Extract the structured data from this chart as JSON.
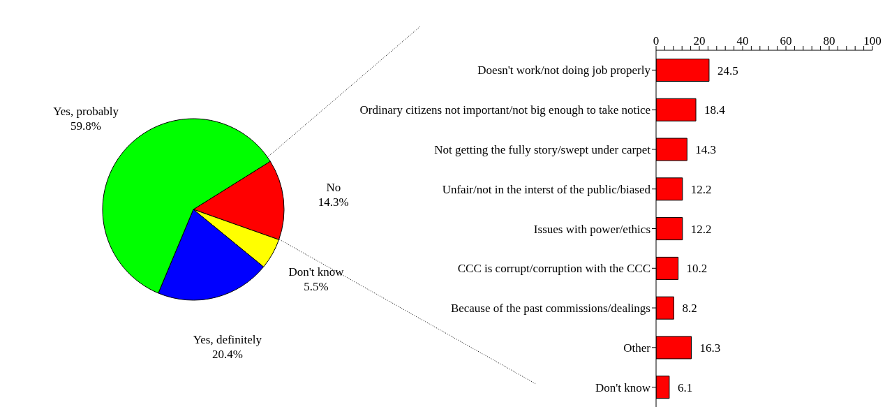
{
  "chart_data": [
    {
      "type": "pie",
      "categories": [
        "No",
        "Don't know",
        "Yes, definitely",
        "Yes, probably"
      ],
      "values": [
        14.3,
        5.5,
        20.4,
        59.8
      ],
      "colors": [
        "#ff0000",
        "#ffff00",
        "#0000ff",
        "#00ff00"
      ],
      "value_labels": [
        "14.3%",
        "5.5%",
        "20.4%",
        "59.8%"
      ]
    },
    {
      "type": "bar",
      "orientation": "horizontal",
      "categories": [
        "Doesn't work/not doing job properly",
        "Ordinary citizens not important/not big enough to take notice",
        "Not getting the fully story/swept under carpet",
        "Unfair/not in the interst of the public/biased",
        "Issues with power/ethics",
        "CCC is corrupt/corruption with the CCC",
        "Because of the past commissions/dealings",
        "Other",
        "Don't know"
      ],
      "values": [
        24.5,
        18.4,
        14.3,
        12.2,
        12.2,
        10.2,
        8.2,
        16.3,
        6.1
      ],
      "color": "#ff0000",
      "xlim": [
        0,
        100
      ],
      "xticks": [
        0,
        {
          "value": 4,
          "label": null
        },
        {
          "value": 8,
          "label": null
        },
        {
          "value": 12,
          "label": null
        },
        {
          "value": 16,
          "label": null
        },
        20,
        {
          "value": 24,
          "label": null
        },
        {
          "value": 28,
          "label": null
        },
        {
          "value": 32,
          "label": null
        },
        {
          "value": 36,
          "label": null
        },
        40,
        {
          "value": 44,
          "label": null
        },
        {
          "value": 48,
          "label": null
        },
        {
          "value": 52,
          "label": null
        },
        {
          "value": 56,
          "label": null
        },
        60,
        {
          "value": 64,
          "label": null
        },
        {
          "value": 68,
          "label": null
        },
        {
          "value": 72,
          "label": null
        },
        {
          "value": 76,
          "label": null
        },
        80,
        {
          "value": 84,
          "label": null
        },
        {
          "value": 88,
          "label": null
        },
        {
          "value": 92,
          "label": null
        },
        {
          "value": 96,
          "label": null
        },
        100
      ],
      "data_labels": true
    }
  ]
}
